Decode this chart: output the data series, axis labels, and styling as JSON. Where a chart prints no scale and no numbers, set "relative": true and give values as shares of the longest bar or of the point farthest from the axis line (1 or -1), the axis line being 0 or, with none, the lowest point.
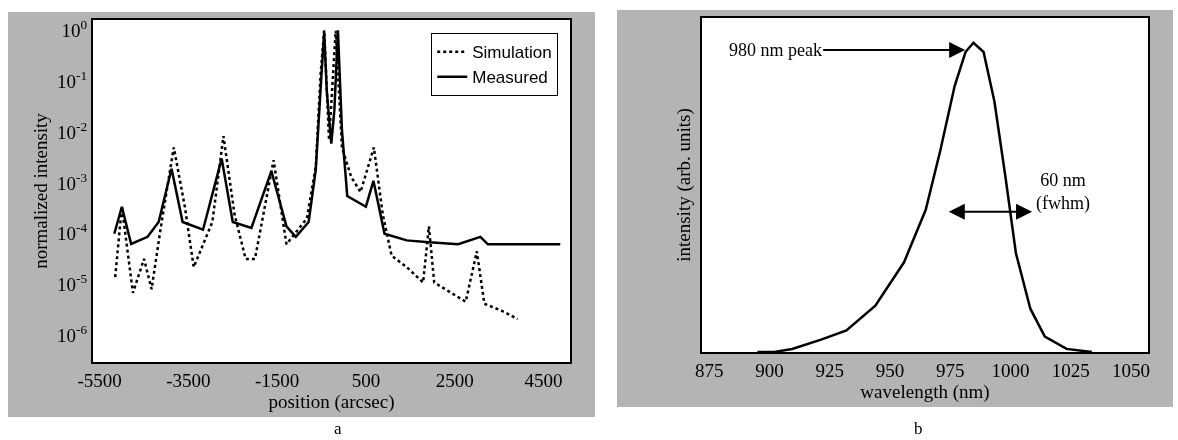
{
  "chart_data": [
    {
      "type": "line",
      "xlabel": "position (arcsec)",
      "ylabel": "normalized intensity",
      "log": "y",
      "grid": false,
      "legend": "top right",
      "xlim": [
        -5650,
        5100
      ],
      "xticks": [
        -5500,
        -3500,
        -1500,
        500,
        2500,
        4500
      ],
      "ylim": [
        3e-07,
        1.6
      ],
      "yticks": [
        {
          "value": 1,
          "label": "10$^{0}$"
        },
        {
          "value": 0.1,
          "label": "10$^{-1}$"
        },
        {
          "value": 0.01,
          "label": "10$^{-2}$"
        },
        {
          "value": 0.001,
          "label": "10$^{-3}$"
        },
        {
          "value": 0.0001,
          "label": "10$^{-4}$"
        },
        {
          "value": 1e-05,
          "label": "10$^{-5}$"
        },
        {
          "value": 1e-06,
          "label": "10$^{-6}$"
        }
      ],
      "annotations": [
        "a"
      ],
      "series": [
        {
          "name": "Simulation",
          "color": "#000000",
          "line_style": "dotted",
          "x": [
            -5150,
            -5000,
            -4750,
            -4500,
            -4330,
            -4130,
            -3830,
            -3580,
            -3380,
            -2960,
            -2710,
            -2460,
            -2210,
            -2000,
            -1580,
            -1290,
            -830,
            -630,
            -520,
            -440,
            -330,
            -180,
            -40,
            170,
            380,
            680,
            880,
            1080,
            1420,
            1790,
            1920,
            2040,
            2420,
            2750,
            3000,
            3170,
            3580,
            3920
          ],
          "values": [
            1.4e-05,
            0.00034,
            6.9e-06,
            3.2e-05,
            8.1e-06,
            0.00012,
            0.005,
            0.00034,
            2.2e-05,
            0.00017,
            0.0083,
            0.00024,
            3.2e-05,
            3.2e-05,
            0.0028,
            6.2e-05,
            0.0002,
            0.0021,
            0.14,
            1.0,
            0.0069,
            0.98,
            0.005,
            0.0013,
            0.00066,
            0.005,
            0.00024,
            3.7e-05,
            2.2e-05,
            1.1e-05,
            0.00014,
            1.1e-05,
            6.9e-06,
            4.6e-06,
            4.5e-05,
            4.2e-06,
            3e-06,
            2.1e-06
          ]
        },
        {
          "name": "Measured",
          "color": "#000000",
          "line_style": "solid",
          "x": [
            -5170,
            -5000,
            -4790,
            -4420,
            -4170,
            -3880,
            -3630,
            -3170,
            -2750,
            -2500,
            -2080,
            -1630,
            -1290,
            -1080,
            -790,
            -630,
            -500,
            -440,
            -380,
            -280,
            -210,
            -130,
            -40,
            80,
            500,
            670,
            920,
            1420,
            1920,
            2580,
            3080,
            3250,
            4880
          ],
          "values": [
            0.0001,
            0.00034,
            6.3e-05,
            8.7e-05,
            0.00017,
            0.0019,
            0.00017,
            0.00012,
            0.003,
            0.00017,
            0.00013,
            0.0017,
            0.00014,
            8.7e-05,
            0.00017,
            0.0018,
            0.14,
            0.91,
            0.062,
            0.0059,
            0.027,
            1.0,
            0.011,
            0.00055,
            0.00034,
            0.0011,
            0.0001,
            7.4e-05,
            6.8e-05,
            6.2e-05,
            8.7e-05,
            6.2e-05,
            6.2e-05
          ]
        }
      ]
    },
    {
      "type": "line",
      "xlabel": "wavelength (nm)",
      "ylabel": "intensity (arb. units)",
      "relative": true,
      "grid": false,
      "xlim": [
        872,
        1057
      ],
      "xticks": [
        875,
        900,
        925,
        950,
        975,
        1000,
        1025,
        1050
      ],
      "annotations": [
        "b",
        "980 nm peak",
        "60 nm\n(fwhm)"
      ],
      "series": [
        {
          "color": "#000000",
          "line_style": "solid",
          "x": [
            895,
            902,
            909.4,
            921.4,
            931.9,
            943.9,
            955.8,
            964.8,
            970.8,
            976.8,
            981.3,
            984.6,
            988.8,
            993.3,
            997.8,
            1002.2,
            1008.2,
            1014.2,
            1023.2,
            1033.7
          ],
          "values": [
            0,
            0,
            0.01,
            0.04,
            0.07,
            0.15,
            0.29,
            0.46,
            0.65,
            0.86,
            0.97,
            1.0,
            0.97,
            0.81,
            0.57,
            0.32,
            0.14,
            0.05,
            0.01,
            0
          ]
        }
      ]
    }
  ]
}
